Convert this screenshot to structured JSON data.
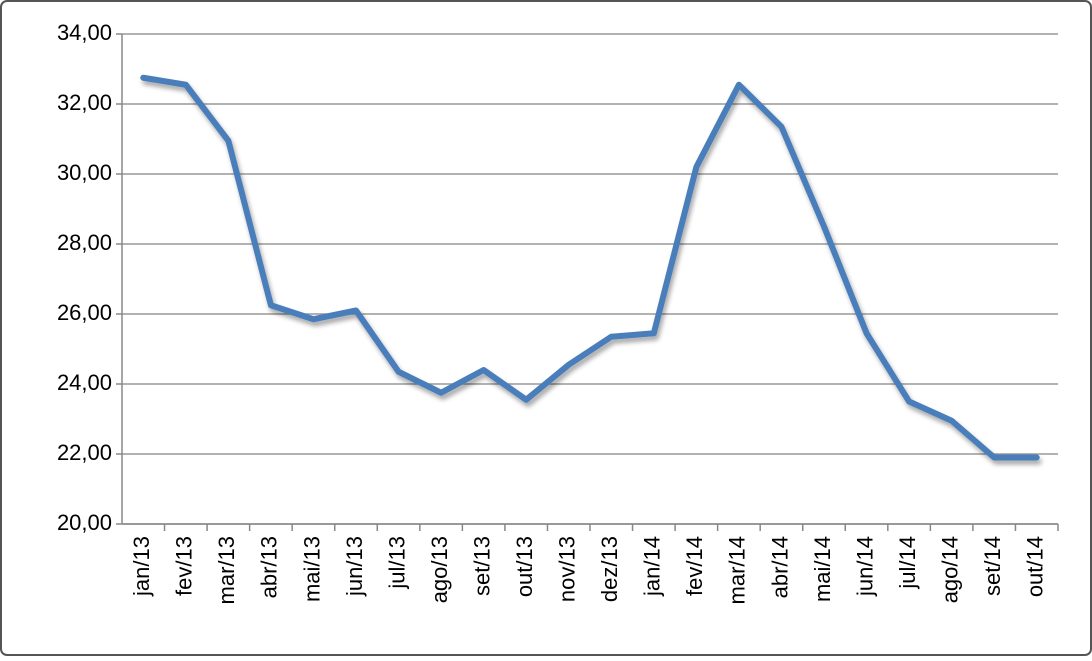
{
  "chart_data": {
    "type": "line",
    "categories": [
      "jan/13",
      "fev/13",
      "mar/13",
      "abr/13",
      "mai/13",
      "jun/13",
      "jul/13",
      "ago/13",
      "set/13",
      "out/13",
      "nov/13",
      "dez/13",
      "jan/14",
      "fev/14",
      "mar/14",
      "abr/14",
      "mai/14",
      "jun/14",
      "jul/14",
      "ago/14",
      "set/14",
      "out/14"
    ],
    "values": [
      32.75,
      32.55,
      30.95,
      26.25,
      25.85,
      26.1,
      24.35,
      23.75,
      24.4,
      23.55,
      24.55,
      25.35,
      25.45,
      30.2,
      32.55,
      31.35,
      28.5,
      25.45,
      23.5,
      22.95,
      21.9,
      21.9
    ],
    "color": "#4a7ebb",
    "ylim": [
      20,
      34
    ],
    "yticks": [
      {
        "value": 20,
        "label": "20,00"
      },
      {
        "value": 22,
        "label": "22,00"
      },
      {
        "value": 24,
        "label": "24,00"
      },
      {
        "value": 26,
        "label": "26,00"
      },
      {
        "value": 28,
        "label": "28,00"
      },
      {
        "value": 30,
        "label": "30,00"
      },
      {
        "value": 32,
        "label": "32,00"
      },
      {
        "value": 34,
        "label": "34,00"
      }
    ],
    "grid": true
  }
}
